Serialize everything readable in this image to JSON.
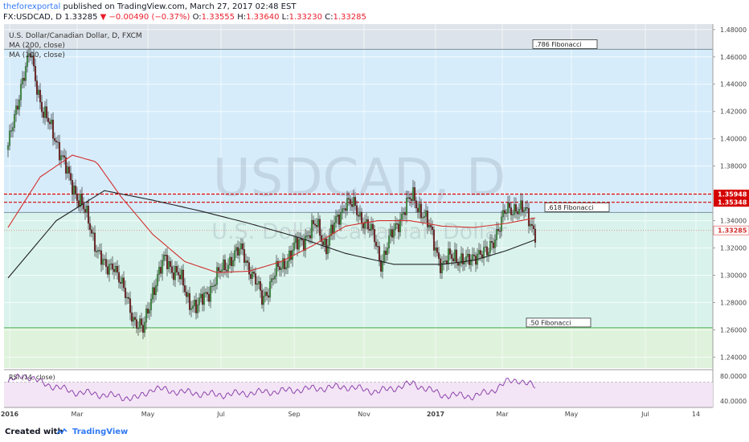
{
  "header": {
    "user": "theforexportal",
    "published": "published on TradingView.com, March 27, 2017 02:48 EST",
    "symbol_line": "FX:USDCAD, D",
    "last": "1.33285",
    "change": "−0.00490 (−0.37%)",
    "o_label": "O:",
    "o": "1.33555",
    "h_label": "H:",
    "h": "1.33640",
    "l_label": "L:",
    "l": "1.33230",
    "c_label": "C:",
    "c": "1.33285"
  },
  "legend": {
    "instrument": "U.S. Dollar/Canadian Dollar, D, FXCM",
    "ma1": "MA (200, close)",
    "ma2": "MA (100, close)",
    "rsi": "RSI (14, close)"
  },
  "watermark": {
    "symbol": "USDCAD, D",
    "name": "U.S. Dollar/Canadian Dollar"
  },
  "footer": {
    "created": "Created with",
    "brand": "TradingView"
  },
  "colors": {
    "bull": "#43a047",
    "bear": "#7a1d1d",
    "candle_outline": "#333333",
    "ma200": "#222222",
    "ma100": "#d32f2f",
    "rsi": "#8e44ad",
    "fib_top_zone": "#dde3ea",
    "fib_blue_zone": "#d6ecfa",
    "fib_teal_zone": "#d9f3ec",
    "fib_green_zone": "#dff3dc",
    "resistance": "#d50000",
    "accent": "#3179f5"
  },
  "chart_data": {
    "type": "candlestick",
    "title": "U.S. Dollar/Canadian Dollar, D, FXCM",
    "x_ticks": [
      "2016",
      "Mar",
      "May",
      "Jul",
      "Sep",
      "Nov",
      "2017",
      "Mar",
      "May",
      "Jul",
      "14"
    ],
    "y_ticks": [
      "1.48000",
      "1.46000",
      "1.44000",
      "1.42000",
      "1.40000",
      "1.38000",
      "1.36000",
      "1.34000",
      "1.32000",
      "1.30000",
      "1.28000",
      "1.26000",
      "1.24000"
    ],
    "ylim": [
      1.232,
      1.484
    ],
    "fibonacci": [
      {
        "label": ".786 Fibonacci",
        "level": 1.4655
      },
      {
        "label": ".618 Fibonacci",
        "level": 1.346
      },
      {
        "label": ".50 Fibonacci",
        "level": 1.2615
      }
    ],
    "price_labels": [
      {
        "value": 1.35948,
        "text": "1.35948",
        "style": "resistance"
      },
      {
        "value": 1.35348,
        "text": "1.35348",
        "style": "resistance"
      },
      {
        "value": 1.33285,
        "text": "1.33285",
        "style": "last"
      }
    ],
    "close_path": [
      [
        0,
        1.392
      ],
      [
        8,
        1.44
      ],
      [
        14,
        1.462
      ],
      [
        22,
        1.418
      ],
      [
        30,
        1.4
      ],
      [
        38,
        1.37
      ],
      [
        45,
        1.355
      ],
      [
        50,
        1.338
      ],
      [
        55,
        1.322
      ],
      [
        61,
        1.302
      ],
      [
        66,
        1.31
      ],
      [
        72,
        1.287
      ],
      [
        78,
        1.27
      ],
      [
        84,
        1.258
      ],
      [
        90,
        1.29
      ],
      [
        98,
        1.312
      ],
      [
        106,
        1.3
      ],
      [
        112,
        1.283
      ],
      [
        118,
        1.276
      ],
      [
        124,
        1.288
      ],
      [
        130,
        1.298
      ],
      [
        138,
        1.312
      ],
      [
        146,
        1.318
      ],
      [
        152,
        1.3
      ],
      [
        158,
        1.283
      ],
      [
        166,
        1.3
      ],
      [
        172,
        1.31
      ],
      [
        180,
        1.322
      ],
      [
        186,
        1.33
      ],
      [
        192,
        1.336
      ],
      [
        198,
        1.322
      ],
      [
        204,
        1.338
      ],
      [
        210,
        1.355
      ],
      [
        216,
        1.348
      ],
      [
        222,
        1.34
      ],
      [
        228,
        1.326
      ],
      [
        232,
        1.31
      ],
      [
        240,
        1.332
      ],
      [
        246,
        1.348
      ],
      [
        252,
        1.357
      ],
      [
        258,
        1.346
      ],
      [
        264,
        1.328
      ],
      [
        270,
        1.307
      ],
      [
        278,
        1.315
      ],
      [
        286,
        1.308
      ],
      [
        292,
        1.318
      ],
      [
        298,
        1.314
      ],
      [
        304,
        1.333
      ],
      [
        310,
        1.346
      ],
      [
        316,
        1.351
      ],
      [
        322,
        1.345
      ],
      [
        328,
        1.333
      ]
    ],
    "ma200": [
      [
        0,
        1.298
      ],
      [
        30,
        1.34
      ],
      [
        60,
        1.362
      ],
      [
        90,
        1.355
      ],
      [
        120,
        1.347
      ],
      [
        150,
        1.338
      ],
      [
        180,
        1.328
      ],
      [
        210,
        1.316
      ],
      [
        240,
        1.308
      ],
      [
        270,
        1.308
      ],
      [
        290,
        1.311
      ],
      [
        310,
        1.318
      ],
      [
        328,
        1.326
      ]
    ],
    "ma100": [
      [
        0,
        1.335
      ],
      [
        20,
        1.372
      ],
      [
        40,
        1.388
      ],
      [
        55,
        1.383
      ],
      [
        70,
        1.358
      ],
      [
        90,
        1.33
      ],
      [
        110,
        1.31
      ],
      [
        130,
        1.302
      ],
      [
        150,
        1.303
      ],
      [
        170,
        1.31
      ],
      [
        190,
        1.322
      ],
      [
        210,
        1.336
      ],
      [
        230,
        1.34
      ],
      [
        250,
        1.34
      ],
      [
        270,
        1.336
      ],
      [
        290,
        1.335
      ],
      [
        310,
        1.338
      ],
      [
        328,
        1.342
      ]
    ],
    "rsi": {
      "label": "RSI (14, close)",
      "ylim": [
        30,
        90
      ],
      "y_ticks": [
        "80.0000",
        "40.0000"
      ],
      "bands": [
        70,
        30
      ],
      "path": [
        [
          0,
          70
        ],
        [
          10,
          82
        ],
        [
          20,
          70
        ],
        [
          40,
          55
        ],
        [
          60,
          50
        ],
        [
          80,
          44
        ],
        [
          90,
          60
        ],
        [
          110,
          54
        ],
        [
          130,
          50
        ],
        [
          150,
          53
        ],
        [
          170,
          56
        ],
        [
          190,
          60
        ],
        [
          210,
          63
        ],
        [
          230,
          55
        ],
        [
          252,
          68
        ],
        [
          270,
          50
        ],
        [
          290,
          48
        ],
        [
          300,
          55
        ],
        [
          310,
          70
        ],
        [
          318,
          74
        ],
        [
          328,
          62
        ]
      ]
    }
  }
}
